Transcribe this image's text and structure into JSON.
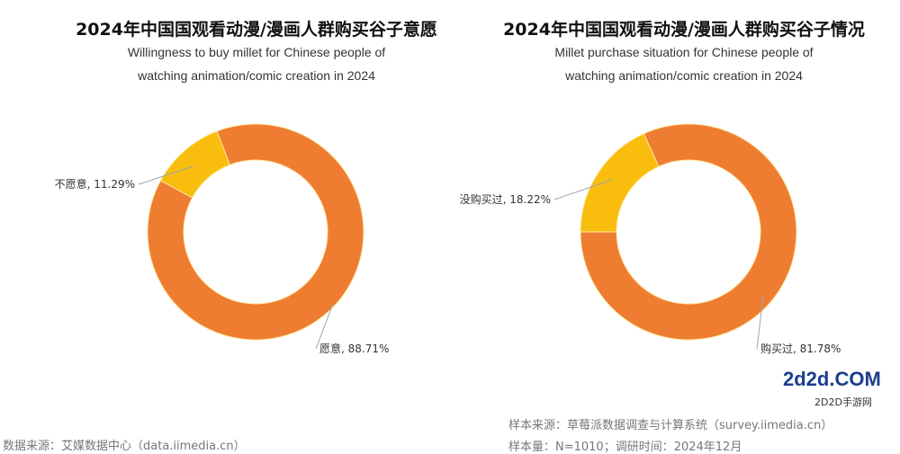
{
  "chart_data": [
    {
      "type": "pie",
      "donut": true,
      "title": "2024年中国国观看动漫/漫画人群购买谷子意愿",
      "subtitle": [
        "Willingness to buy millet for Chinese people of",
        "watching animation/comic creation in 2024"
      ],
      "slices": [
        {
          "label": "不愿意",
          "value": 11.29,
          "text": "不愿意, 11.29%",
          "color": "#F9BE0D"
        },
        {
          "label": "愿意",
          "value": 88.71,
          "text": "愿意, 88.71%",
          "color": "#EE7D31"
        }
      ]
    },
    {
      "type": "pie",
      "donut": true,
      "title": "2024年中国国观看动漫/漫画人群购买谷子情况",
      "subtitle": [
        "Millet purchase situation for Chinese people of",
        "watching animation/comic creation in 2024"
      ],
      "slices": [
        {
          "label": "没购买过",
          "value": 18.22,
          "text": "没购买过, 18.22%",
          "color": "#F9BE0D"
        },
        {
          "label": "购买过",
          "value": 81.78,
          "text": "购买过, 81.78%",
          "color": "#EE7D31"
        }
      ]
    }
  ],
  "footer": {
    "source_left": "数据来源：艾媒数据中心（data.iimedia.cn）",
    "sample_source": "样本来源：草莓派数据调查与计算系统（survey.iimedia.cn）",
    "sample_size": "样本量：N=1010；调研时间：2024年12月"
  },
  "watermark": {
    "top": "2D2D手游网",
    "bottom": "2d2d.COM"
  }
}
